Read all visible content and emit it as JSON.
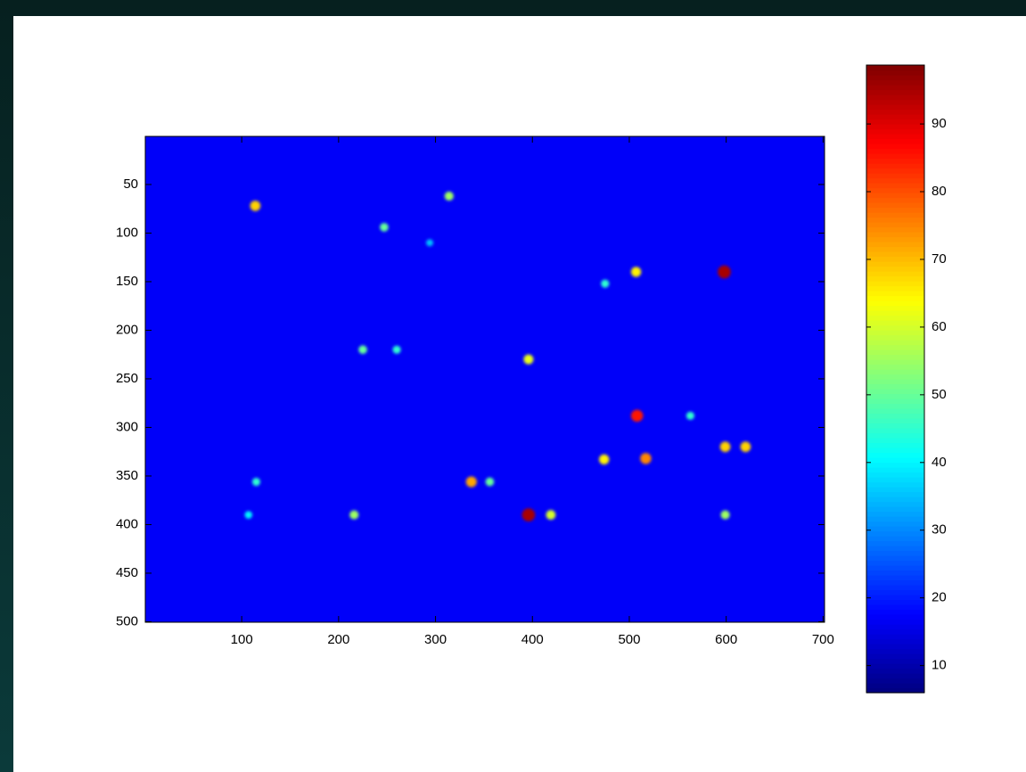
{
  "chart_data": {
    "type": "image",
    "colormap": "jet",
    "background_value": 17,
    "xlim": [
      0.5,
      701.5
    ],
    "xticks": [
      100,
      200,
      300,
      400,
      500,
      600,
      700
    ],
    "ylim": [
      0.5,
      500.5
    ],
    "yticks": [
      50,
      100,
      150,
      200,
      250,
      300,
      350,
      400,
      450,
      500
    ],
    "clim": [
      6,
      98.7
    ],
    "cticks": [
      10,
      20,
      30,
      40,
      50,
      60,
      70,
      80,
      90
    ],
    "spots": {
      "x": [
        598,
        396,
        508,
        517,
        337,
        114,
        507,
        599,
        620,
        474,
        396,
        419,
        216,
        314,
        247,
        225,
        260,
        356,
        115,
        475,
        563,
        599,
        294,
        107
      ],
      "y": [
        140,
        390,
        288,
        332,
        356,
        72,
        140,
        320,
        320,
        333,
        230,
        390,
        390,
        62,
        94,
        220,
        220,
        356,
        356,
        152,
        288,
        390,
        110,
        390
      ],
      "values": [
        95,
        95,
        85,
        75,
        72,
        68,
        65,
        68,
        68,
        65,
        62,
        60,
        55,
        55,
        50,
        50,
        45,
        50,
        45,
        45,
        45,
        55,
        35,
        40
      ]
    }
  }
}
